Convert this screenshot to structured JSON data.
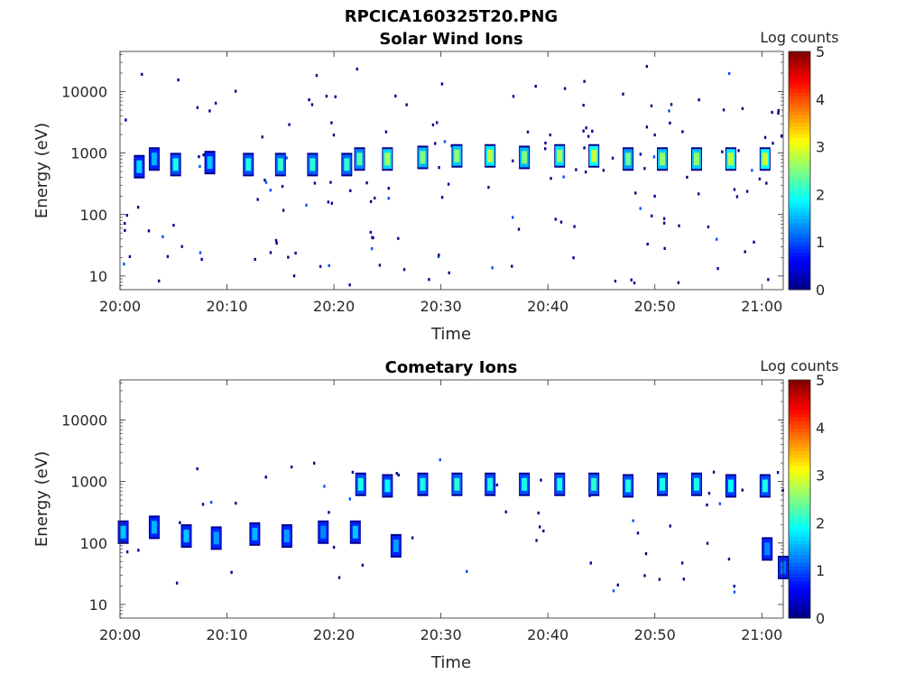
{
  "figure": {
    "title": "RPCICA160325T20.PNG"
  },
  "chart_data": [
    {
      "type": "heatmap",
      "title": "Solar Wind Ions",
      "xlabel": "Time",
      "ylabel": "Energy (eV)",
      "x_ticks": [
        "20:00",
        "20:10",
        "20:20",
        "20:30",
        "20:40",
        "20:50",
        "21:00"
      ],
      "x_range": [
        "20:00",
        "21:02"
      ],
      "y_scale": "log",
      "y_ticks": [
        "10",
        "100",
        "1000",
        "10000"
      ],
      "y_range": [
        6,
        45000
      ],
      "colorbar": {
        "label": "Log counts",
        "ticks": [
          "0",
          "1",
          "2",
          "3",
          "4",
          "5"
        ],
        "range": [
          0,
          5
        ],
        "colormap": "jet"
      },
      "blobs": [
        {
          "t": "20:01.8",
          "e": 600,
          "v": 1.7
        },
        {
          "t": "20:03.2",
          "e": 800,
          "v": 1.5
        },
        {
          "t": "20:05.2",
          "e": 650,
          "v": 2.0
        },
        {
          "t": "20:08.4",
          "e": 700,
          "v": 1.6
        },
        {
          "t": "20:12.0",
          "e": 650,
          "v": 2.0
        },
        {
          "t": "20:15.0",
          "e": 650,
          "v": 2.1
        },
        {
          "t": "20:18.0",
          "e": 650,
          "v": 2.1
        },
        {
          "t": "20:21.2",
          "e": 650,
          "v": 2.1
        },
        {
          "t": "20:22.4",
          "e": 800,
          "v": 2.3
        },
        {
          "t": "20:25.0",
          "e": 800,
          "v": 2.7
        },
        {
          "t": "20:28.3",
          "e": 850,
          "v": 2.5
        },
        {
          "t": "20:31.5",
          "e": 900,
          "v": 2.6
        },
        {
          "t": "20:34.6",
          "e": 900,
          "v": 2.8
        },
        {
          "t": "20:37.8",
          "e": 850,
          "v": 2.5
        },
        {
          "t": "20:41.1",
          "e": 900,
          "v": 2.7
        },
        {
          "t": "20:44.3",
          "e": 900,
          "v": 2.9
        },
        {
          "t": "20:47.5",
          "e": 800,
          "v": 2.4
        },
        {
          "t": "20:50.7",
          "e": 800,
          "v": 2.6
        },
        {
          "t": "20:53.9",
          "e": 800,
          "v": 2.6
        },
        {
          "t": "20:57.1",
          "e": 800,
          "v": 2.8
        },
        {
          "t": "21:00.3",
          "e": 800,
          "v": 2.9
        }
      ]
    },
    {
      "type": "heatmap",
      "title": "Cometary Ions",
      "xlabel": "Time",
      "ylabel": "Energy (eV)",
      "x_ticks": [
        "20:00",
        "20:10",
        "20:20",
        "20:30",
        "20:40",
        "20:50",
        "21:00"
      ],
      "x_range": [
        "20:00",
        "21:02"
      ],
      "y_scale": "log",
      "y_ticks": [
        "10",
        "100",
        "1000",
        "10000"
      ],
      "y_range": [
        6,
        45000
      ],
      "colorbar": {
        "label": "Log counts",
        "ticks": [
          "0",
          "1",
          "2",
          "3",
          "4",
          "5"
        ],
        "range": [
          0,
          5
        ],
        "colormap": "jet"
      },
      "blobs": [
        {
          "t": "20:00.3",
          "e": 150,
          "v": 1.6
        },
        {
          "t": "20:03.2",
          "e": 180,
          "v": 1.5
        },
        {
          "t": "20:06.2",
          "e": 130,
          "v": 1.6
        },
        {
          "t": "20:09.0",
          "e": 120,
          "v": 1.4
        },
        {
          "t": "20:12.6",
          "e": 140,
          "v": 1.5
        },
        {
          "t": "20:15.6",
          "e": 130,
          "v": 1.4
        },
        {
          "t": "20:19.0",
          "e": 150,
          "v": 1.3
        },
        {
          "t": "20:22.0",
          "e": 150,
          "v": 1.6
        },
        {
          "t": "20:25.8",
          "e": 90,
          "v": 1.4
        },
        {
          "t": "20:22.5",
          "e": 900,
          "v": 2.0
        },
        {
          "t": "20:25.0",
          "e": 850,
          "v": 1.9
        },
        {
          "t": "20:28.3",
          "e": 900,
          "v": 2.0
        },
        {
          "t": "20:31.5",
          "e": 900,
          "v": 2.1
        },
        {
          "t": "20:34.6",
          "e": 900,
          "v": 2.0
        },
        {
          "t": "20:37.8",
          "e": 900,
          "v": 2.0
        },
        {
          "t": "20:41.1",
          "e": 900,
          "v": 2.0
        },
        {
          "t": "20:44.3",
          "e": 900,
          "v": 2.1
        },
        {
          "t": "20:47.5",
          "e": 850,
          "v": 2.0
        },
        {
          "t": "20:50.7",
          "e": 900,
          "v": 2.0
        },
        {
          "t": "20:53.9",
          "e": 900,
          "v": 2.0
        },
        {
          "t": "20:57.1",
          "e": 850,
          "v": 1.9
        },
        {
          "t": "21:00.3",
          "e": 850,
          "v": 2.0
        },
        {
          "t": "21:00.5",
          "e": 80,
          "v": 1.3
        },
        {
          "t": "21:02.0",
          "e": 40,
          "v": 1.2
        }
      ]
    }
  ]
}
